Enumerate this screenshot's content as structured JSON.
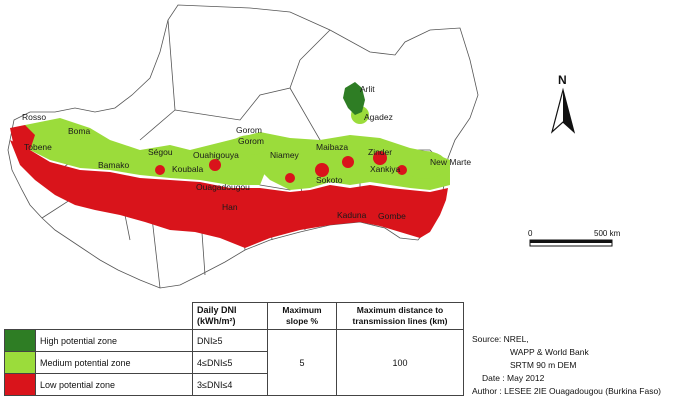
{
  "map": {
    "north_label": "N",
    "scale": {
      "start": "0",
      "end": "500 km"
    },
    "cities": [
      "Rosso",
      "Boma",
      "Tobene",
      "Ségou",
      "Bamako",
      "Gorom",
      "Gorom",
      "Ouahigouya",
      "Koubala",
      "Niamey",
      "Maibaza",
      "Zinder",
      "Xankiya",
      "Sokoto",
      "New Marte",
      "Ouagadougou",
      "Han",
      "Kaduna",
      "Gombe",
      "Arlit",
      "Agadez"
    ],
    "colors": {
      "high": "#2e7d24",
      "medium": "#9bdc3b",
      "low": "#d9141b"
    }
  },
  "legend": {
    "headers": {
      "dni": "Daily DNI (kWh/m²)",
      "slope": "Maximum slope %",
      "distance": "Maximum distance to transmission lines (km)"
    },
    "zones": [
      {
        "label": "High potential zone",
        "dni": "DNI≥5",
        "color": "#2e7d24"
      },
      {
        "label": "Medium potential zone",
        "dni": "4≤DNI≤5",
        "color": "#9bdc3b"
      },
      {
        "label": "Low potential zone",
        "dni": "3≤DNI≤4",
        "color": "#d9141b"
      }
    ],
    "slope_value": "5",
    "distance_value": "100"
  },
  "source": {
    "line1": "Source: NREL,",
    "line2": "WAPP & World Bank",
    "line3": "SRTM  90 m DEM",
    "date": "Date : May 2012",
    "author": "Author : LESEE 2IE Ouagadougou  (Burkina Faso)"
  }
}
